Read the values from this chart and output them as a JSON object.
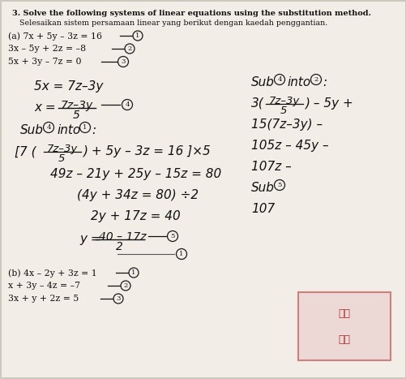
{
  "bg_color": "#d8d4cc",
  "title1": "3. Solve the following systems of linear equations using the substitution method.",
  "title2": "   Selesaikan sistem persamaan linear yang berikut dengan kaedah penggantian.",
  "eq_a1": "(a) 7x + 5y – 3z = 16",
  "eq_a2": "3x – 5y + 2z = –8",
  "eq_a3": "5x + 3y – 7z = 0",
  "step1": "5x = 7z–3y",
  "step2a": "x =",
  "step2num": "7z–3y",
  "step2den": "5",
  "sub_label1": "Sub",
  "into_label1": "into",
  "bracket_line1a": "[7 (",
  "bracket_frac_num": "7z–3y",
  "bracket_frac_den": "5",
  "bracket_line1b": ") + 5y – 3z = 16 ] ×5",
  "line_expand": "49z – 21y + 25y – 15z = 80",
  "line_simplify": "(4y + 34z = 80) ÷ 2",
  "line_simple2": "2y + 17z = 40",
  "line_y_eq": "y =",
  "line_y_num": "40 – 17z",
  "line_y_den": "2",
  "right_sub": "Sub",
  "right_into": "into",
  "right_colon": ":",
  "right_3": "3(",
  "right_frac_num": "7z–3y",
  "right_frac_den": "5",
  "right_after": ") – 5y +",
  "right_15": "15(7z–3y) –",
  "right_105": "105z – 45y –",
  "right_107": "107z –",
  "right_sub5": "Sub",
  "right_107b": "107",
  "eq_b_sep": "—",
  "eq_b1": "(b) 4x – 2y + 3z = 1",
  "eq_b2": "x + 3y – 4z = –7",
  "eq_b3": "3x + y + 2z = 5"
}
